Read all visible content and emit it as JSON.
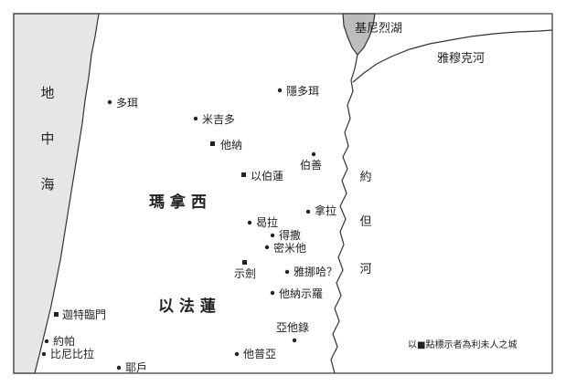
{
  "map": {
    "colors": {
      "sea": "#e6e6e6",
      "lake": "#bdbdbd",
      "ink": "#222222",
      "border": "#333333"
    },
    "seas": {
      "mediterranean": [
        "地",
        "中",
        "海"
      ],
      "galilee_lake": "基尼烈湖"
    },
    "rivers": {
      "jordan": [
        "約",
        "但",
        "河"
      ],
      "yarmuk": "雅穆克河"
    },
    "regions": {
      "manasseh_west": "瑪 拿 西",
      "ephraim": "以 法 蓮"
    },
    "towns": {
      "dor": "多珥",
      "endor": "隱多珥",
      "megiddo": "米吉多",
      "taanach": "他納",
      "ibleam": "以伯蓮",
      "bezek": "伯善",
      "gezer": "迦特臨門",
      "joppa": "約帕",
      "bene_berak": "比尼比拉",
      "yehud": "耶戶",
      "gath_hepher": "他普亞",
      "shechem": "示劍",
      "tirzah": "得撒",
      "michmethah": "密米他",
      "janoah": "雅挪哈？",
      "taanath_shiloh": "他納示羅",
      "ataroth": "亞他錄",
      "hamrath": "曷拉",
      "naarah": "拿拉"
    },
    "legend_text": "以■點標示者為利未人之城"
  }
}
